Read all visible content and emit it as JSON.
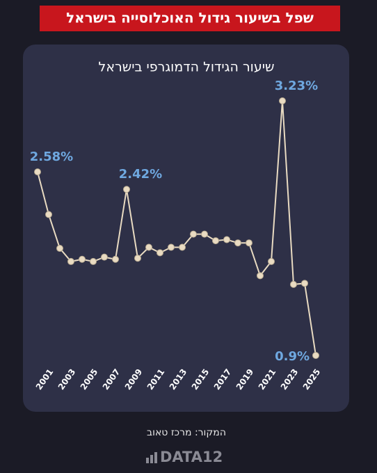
{
  "header": "שפל בשיעור גידול האוכלוסייה בישראל",
  "source": "המקור: מרכז טאוב",
  "logo": "DATA12",
  "chart_data": {
    "type": "line",
    "title": "שיעור הגידול הדמוגרפי בישראל",
    "categories": [
      null,
      "2001",
      null,
      "2003",
      null,
      "2005",
      null,
      "2007",
      null,
      "2009",
      null,
      "2011",
      null,
      "2013",
      null,
      "2015",
      null,
      "2017",
      null,
      "2019",
      null,
      "2021",
      null,
      "2023",
      null,
      "2025"
    ],
    "values": [
      2.58,
      2.19,
      1.88,
      1.76,
      1.78,
      1.76,
      1.8,
      1.78,
      2.42,
      1.79,
      1.89,
      1.84,
      1.89,
      1.89,
      2.01,
      2.01,
      1.95,
      1.96,
      1.93,
      1.93,
      1.63,
      1.76,
      3.23,
      1.55,
      1.56,
      0.9
    ],
    "value_labels": [
      "2.58%",
      null,
      null,
      null,
      null,
      null,
      null,
      null,
      "2.42%",
      null,
      null,
      null,
      null,
      null,
      null,
      null,
      null,
      null,
      null,
      null,
      null,
      null,
      "3.23%",
      null,
      null,
      "0.9%"
    ],
    "color": "#e9dbc2",
    "label_color": "#6fa8e0"
  }
}
